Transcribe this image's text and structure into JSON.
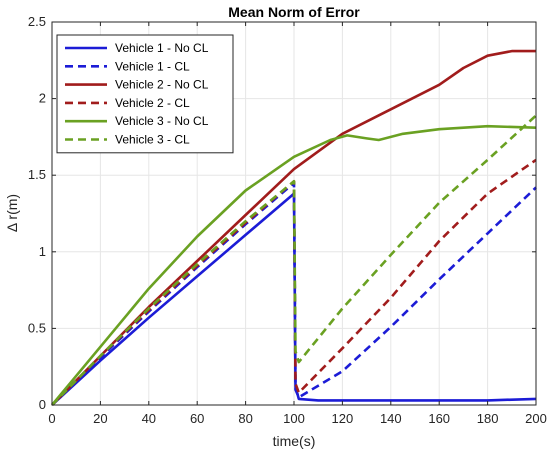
{
  "chart_data": {
    "type": "line",
    "title": "Mean Norm of Error",
    "xlabel": "time(s)",
    "ylabel": "Δ r(m)",
    "xlim": [
      0,
      200
    ],
    "ylim": [
      0,
      2.5
    ],
    "xticks": [
      0,
      20,
      40,
      60,
      80,
      100,
      120,
      140,
      160,
      180,
      200
    ],
    "yticks": [
      0,
      0.5,
      1,
      1.5,
      2,
      2.5
    ],
    "ytick_labels": [
      "0",
      "0.5",
      "1",
      "1.5",
      "2",
      "2.5"
    ],
    "grid": true,
    "legend_position": "top-left",
    "series": [
      {
        "name": "Vehicle 1 - No CL",
        "color": "#1c1cd6",
        "dash": "solid",
        "x": [
          0,
          20,
          40,
          60,
          80,
          100,
          100.6,
          102,
          110,
          120,
          140,
          160,
          180,
          200
        ],
        "y": [
          0,
          0.29,
          0.57,
          0.84,
          1.11,
          1.38,
          0.12,
          0.04,
          0.03,
          0.03,
          0.03,
          0.03,
          0.03,
          0.04
        ]
      },
      {
        "name": "Vehicle 1 - CL",
        "color": "#1c1cd6",
        "dash": "dashed",
        "x": [
          0,
          20,
          40,
          60,
          80,
          100,
          100.6,
          102,
          120,
          140,
          160,
          180,
          200
        ],
        "y": [
          0,
          0.31,
          0.61,
          0.9,
          1.18,
          1.45,
          0.1,
          0.05,
          0.22,
          0.51,
          0.82,
          1.12,
          1.42
        ]
      },
      {
        "name": "Vehicle 2 - No CL",
        "color": "#a11c1c",
        "dash": "solid",
        "x": [
          0,
          20,
          40,
          60,
          80,
          100,
          120,
          140,
          160,
          170,
          180,
          190,
          200
        ],
        "y": [
          0,
          0.32,
          0.64,
          0.94,
          1.24,
          1.54,
          1.77,
          1.93,
          2.09,
          2.2,
          2.28,
          2.31,
          2.31
        ]
      },
      {
        "name": "Vehicle 2 - CL",
        "color": "#a11c1c",
        "dash": "dashed",
        "x": [
          0,
          20,
          40,
          60,
          80,
          100,
          100.6,
          102,
          120,
          140,
          160,
          180,
          200
        ],
        "y": [
          0,
          0.32,
          0.62,
          0.91,
          1.19,
          1.46,
          0.14,
          0.08,
          0.37,
          0.7,
          1.07,
          1.38,
          1.6
        ]
      },
      {
        "name": "Vehicle 3 - No CL",
        "color": "#6aa122",
        "dash": "solid",
        "x": [
          0,
          20,
          40,
          60,
          80,
          100,
          115,
          122,
          130,
          135,
          145,
          160,
          180,
          200
        ],
        "y": [
          0,
          0.38,
          0.76,
          1.1,
          1.4,
          1.62,
          1.73,
          1.76,
          1.74,
          1.73,
          1.77,
          1.8,
          1.82,
          1.81
        ]
      },
      {
        "name": "Vehicle 3 - CL",
        "color": "#6aa122",
        "dash": "dashed",
        "x": [
          0,
          20,
          40,
          60,
          80,
          100,
          100.6,
          102,
          120,
          140,
          160,
          180,
          200
        ],
        "y": [
          0,
          0.32,
          0.63,
          0.92,
          1.2,
          1.46,
          0.35,
          0.28,
          0.63,
          0.98,
          1.32,
          1.6,
          1.89
        ]
      }
    ]
  }
}
